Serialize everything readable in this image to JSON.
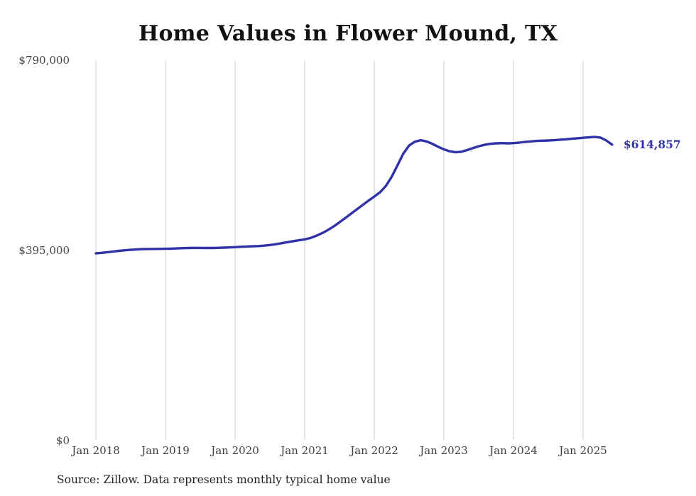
{
  "title": "Home Values in Flower Mound, TX",
  "source_note": "Source: Zillow. Data represents monthly typical home value",
  "colors": {
    "line": "#3232a8",
    "grid": "#cccccc",
    "axis_text": "#444444",
    "title_text": "#111111"
  },
  "chart_data": {
    "type": "line",
    "title": "Home Values in Flower Mound, TX",
    "series_name": "Monthly typical home value",
    "grid": "vertical",
    "legend": "none",
    "ylim": [
      0,
      790000
    ],
    "y_ticks": [
      {
        "value": 790000,
        "label": "$790,000"
      },
      {
        "value": 395000,
        "label": "$395,000"
      },
      {
        "value": 0,
        "label": "$0"
      }
    ],
    "x_tick_labels": [
      "Jan 2018",
      "Jan 2019",
      "Jan 2020",
      "Jan 2021",
      "Jan 2022",
      "Jan 2023",
      "Jan 2024",
      "Jan 2025"
    ],
    "x": [
      "2018-01",
      "2018-02",
      "2018-03",
      "2018-04",
      "2018-05",
      "2018-06",
      "2018-07",
      "2018-08",
      "2018-09",
      "2018-10",
      "2018-11",
      "2018-12",
      "2019-01",
      "2019-02",
      "2019-03",
      "2019-04",
      "2019-05",
      "2019-06",
      "2019-07",
      "2019-08",
      "2019-09",
      "2019-10",
      "2019-11",
      "2019-12",
      "2020-01",
      "2020-02",
      "2020-03",
      "2020-04",
      "2020-05",
      "2020-06",
      "2020-07",
      "2020-08",
      "2020-09",
      "2020-10",
      "2020-11",
      "2020-12",
      "2021-01",
      "2021-02",
      "2021-03",
      "2021-04",
      "2021-05",
      "2021-06",
      "2021-07",
      "2021-08",
      "2021-09",
      "2021-10",
      "2021-11",
      "2021-12",
      "2022-01",
      "2022-02",
      "2022-03",
      "2022-04",
      "2022-05",
      "2022-06",
      "2022-07",
      "2022-08",
      "2022-09",
      "2022-10",
      "2022-11",
      "2022-12",
      "2023-01",
      "2023-02",
      "2023-03",
      "2023-04",
      "2023-05",
      "2023-06",
      "2023-07",
      "2023-08",
      "2023-09",
      "2023-10",
      "2023-11",
      "2023-12",
      "2024-01",
      "2024-02",
      "2024-03",
      "2024-04",
      "2024-05",
      "2024-06",
      "2024-07",
      "2024-08",
      "2024-09",
      "2024-10",
      "2024-11",
      "2024-12",
      "2025-01",
      "2025-02",
      "2025-03",
      "2025-04",
      "2025-05",
      "2025-06"
    ],
    "values": [
      389000,
      390200,
      391500,
      393000,
      394300,
      395400,
      396400,
      397200,
      397800,
      398100,
      398300,
      398400,
      398600,
      398900,
      399300,
      399800,
      400200,
      400400,
      400300,
      400200,
      400200,
      400500,
      400900,
      401400,
      402000,
      402600,
      403200,
      403700,
      404200,
      405000,
      406300,
      408000,
      410000,
      412200,
      414300,
      416200,
      418000,
      421000,
      425500,
      431000,
      437500,
      445000,
      453500,
      462500,
      471500,
      480500,
      489500,
      498500,
      507000,
      516000,
      529000,
      548000,
      572000,
      596000,
      613000,
      621000,
      624000,
      621500,
      616500,
      610500,
      605000,
      601000,
      599000,
      600000,
      603500,
      607500,
      611500,
      614500,
      616500,
      617500,
      618000,
      617500,
      618000,
      619000,
      620500,
      621500,
      622500,
      623000,
      623500,
      624000,
      625000,
      626000,
      627000,
      628000,
      629000,
      630000,
      631000,
      629500,
      623500,
      614857
    ],
    "final_value": 614857,
    "final_value_label": "$614,857"
  }
}
